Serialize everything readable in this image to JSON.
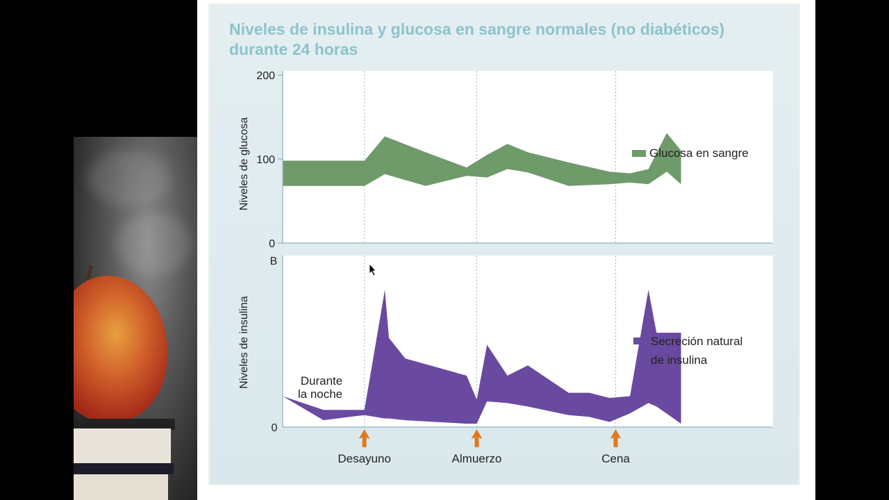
{
  "slide_title": "Niveles de insulina y glucosa en sangre normales (no diabéticos) durante 24 horas",
  "chart_data": [
    {
      "type": "area",
      "panel": "glucose",
      "ylabel": "Niveles de glucosa",
      "yticks": [
        "0",
        "100",
        "200"
      ],
      "ylim": [
        0,
        205
      ],
      "xlim": [
        0,
        24
      ],
      "legend": "right",
      "series": [
        {
          "name": "Glucosa en sangre",
          "color": "#6f9a6a",
          "x": [
            0,
            4,
            5,
            7,
            9,
            10,
            11,
            12,
            14,
            16,
            17,
            17.9,
            18.8,
            19.5
          ],
          "upper": [
            98,
            98,
            127,
            108,
            90,
            105,
            118,
            108,
            96,
            85,
            83,
            88,
            131,
            110
          ],
          "lower": [
            68,
            68,
            82,
            68,
            80,
            78,
            88,
            84,
            68,
            70,
            72,
            70,
            85,
            70
          ]
        }
      ]
    },
    {
      "type": "area",
      "panel": "insulin",
      "ylabel": "Niveles de insulina",
      "yticks": [
        "0"
      ],
      "corner_label": "B",
      "ylim": [
        0,
        100
      ],
      "xlim": [
        0,
        24
      ],
      "legend": "right",
      "annotation": [
        "Durante",
        "la noche"
      ],
      "series": [
        {
          "name_lines": [
            "Secreción natural",
            "de insulina"
          ],
          "color": "#6a4aa0",
          "x": [
            0,
            2,
            4,
            5,
            5.2,
            6,
            9,
            9.5,
            10,
            11,
            12,
            14,
            15,
            16,
            17,
            17.9,
            18.3,
            19.5
          ],
          "upper": [
            18,
            10,
            10,
            80,
            52,
            40,
            30,
            16,
            48,
            30,
            36,
            20,
            20,
            17,
            18,
            80,
            55,
            55
          ],
          "lower": [
            18,
            4,
            7,
            5,
            5,
            4,
            2,
            2,
            15,
            14,
            12,
            7,
            6,
            3,
            8,
            14,
            12,
            2
          ]
        }
      ]
    }
  ],
  "meals": [
    {
      "label": "Desayuno",
      "x": 4
    },
    {
      "label": "Almuerzo",
      "x": 9.5
    },
    {
      "label": "Cena",
      "x": 16.3
    }
  ],
  "colors": {
    "title": "#8cc3cb",
    "arrow": "#e07820",
    "axis": "#9fbcc4",
    "grid_dotted": "#8fb6bf"
  }
}
